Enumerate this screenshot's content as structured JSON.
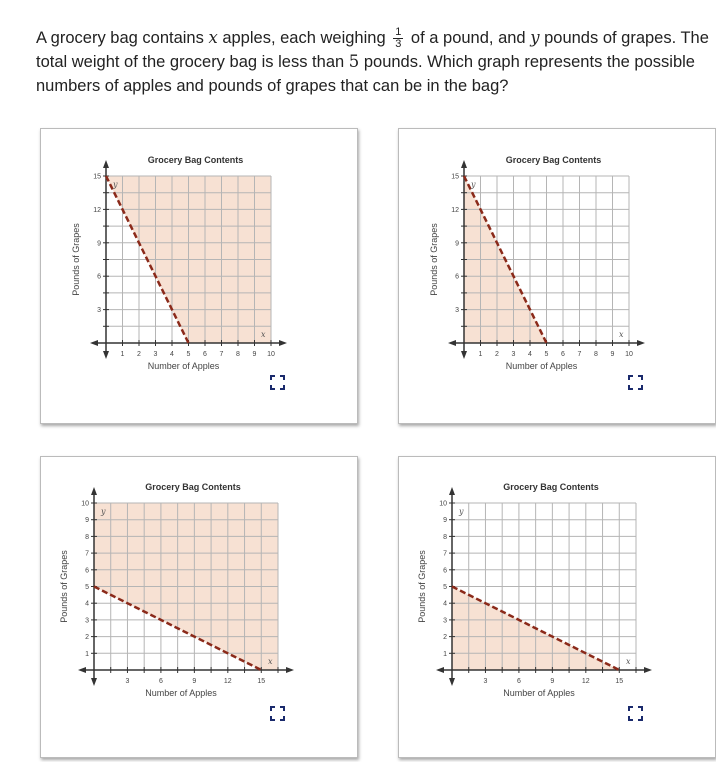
{
  "question": {
    "part1": "A grocery bag contains ",
    "var_x": "x",
    "part2": " apples, each weighing ",
    "frac_num": "1",
    "frac_den": "3",
    "part3": " of a pound, and ",
    "var_y": "y",
    "part4": " pounds of grapes. The total weight of the grocery bag is less than ",
    "num5": "5",
    "part5": " pounds. Which graph represents the possible numbers of apples and pounds of grapes that can be in the bag?"
  },
  "colors": {
    "shade": "#f7e1d3",
    "line": "#8b2a1a",
    "grid": "#b5b5b5",
    "icon": "#1a2a6c"
  },
  "chart_data": [
    {
      "type": "line",
      "title": "Grocery Bag Contents",
      "xlabel": "Number of Apples",
      "ylabel": "Pounds of Grapes",
      "axis_x_name": "x",
      "axis_y_name": "y",
      "xlim": [
        0,
        10
      ],
      "ylim": [
        0,
        15
      ],
      "xgrid": 1,
      "ygrid": 1.5,
      "xticks": [
        1,
        2,
        3,
        4,
        5,
        6,
        7,
        8,
        9,
        10
      ],
      "yticks": [
        3,
        6,
        9,
        12,
        15
      ],
      "line": {
        "x": [
          0,
          5
        ],
        "y": [
          15,
          0
        ],
        "style": "dashed"
      },
      "shade": "above"
    },
    {
      "type": "line",
      "title": "Grocery Bag Contents",
      "xlabel": "Number of Apples",
      "ylabel": "Pounds of Grapes",
      "axis_x_name": "x",
      "axis_y_name": "y",
      "xlim": [
        0,
        10
      ],
      "ylim": [
        0,
        15
      ],
      "xgrid": 1,
      "ygrid": 1.5,
      "xticks": [
        1,
        2,
        3,
        4,
        5,
        6,
        7,
        8,
        9,
        10
      ],
      "yticks": [
        3,
        6,
        9,
        12,
        15
      ],
      "line": {
        "x": [
          0,
          5
        ],
        "y": [
          15,
          0
        ],
        "style": "dashed"
      },
      "shade": "below"
    },
    {
      "type": "line",
      "title": "Grocery Bag Contents",
      "xlabel": "Number of Apples",
      "ylabel": "Pounds of Grapes",
      "axis_x_name": "x",
      "axis_y_name": "y",
      "xlim": [
        0,
        16.5
      ],
      "ylim": [
        0,
        10
      ],
      "xgrid": 1.5,
      "ygrid": 1,
      "xticks": [
        3,
        6,
        9,
        12,
        15
      ],
      "yticks": [
        1,
        2,
        3,
        4,
        5,
        6,
        7,
        8,
        9,
        10
      ],
      "line": {
        "x": [
          0,
          15
        ],
        "y": [
          5,
          0
        ],
        "style": "dashed"
      },
      "shade": "above"
    },
    {
      "type": "line",
      "title": "Grocery Bag Contents",
      "xlabel": "Number of Apples",
      "ylabel": "Pounds of Grapes",
      "axis_x_name": "x",
      "axis_y_name": "y",
      "xlim": [
        0,
        16.5
      ],
      "ylim": [
        0,
        10
      ],
      "xgrid": 1.5,
      "ygrid": 1,
      "xticks": [
        3,
        6,
        9,
        12,
        15
      ],
      "yticks": [
        1,
        2,
        3,
        4,
        5,
        6,
        7,
        8,
        9,
        10
      ],
      "line": {
        "x": [
          0,
          15
        ],
        "y": [
          5,
          0
        ],
        "style": "dashed"
      },
      "shade": "below"
    }
  ]
}
